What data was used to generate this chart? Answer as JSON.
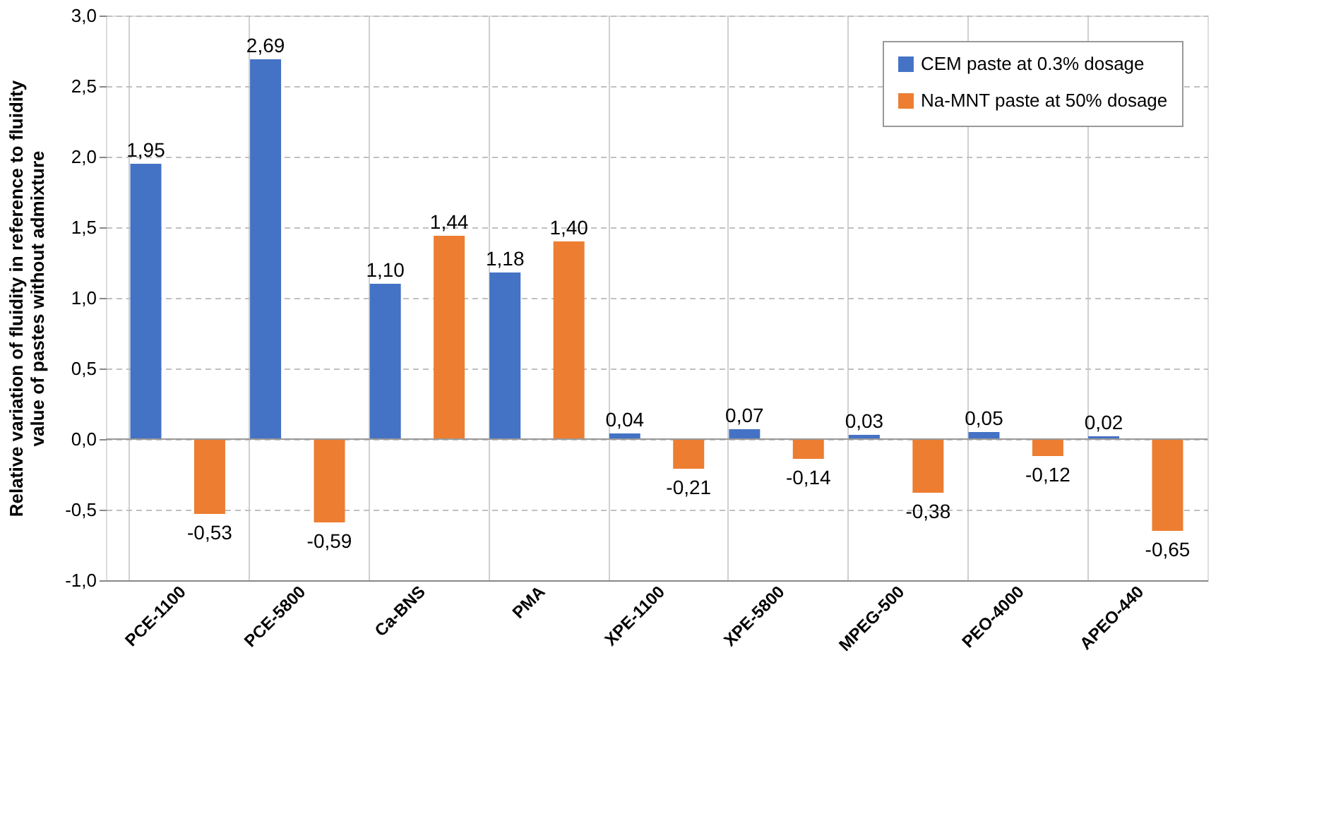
{
  "chart_data": {
    "type": "bar",
    "ylabel": "Relative variation of fluidity in reference to fluidity value of pastes without admixture",
    "categories": [
      "PCE-1100",
      "PCE-5800",
      "Ca-BNS",
      "PMA",
      "XPE-1100",
      "XPE-5800",
      "MPEG-500",
      "PEO-4000",
      "APEO-440"
    ],
    "series": [
      {
        "name": "CEM paste at 0.3% dosage",
        "color": "#4472c4",
        "values": [
          1.95,
          2.69,
          1.1,
          1.18,
          0.04,
          0.07,
          0.03,
          0.05,
          0.02
        ],
        "value_labels": [
          "1,95",
          "2,69",
          "1,10",
          "1,18",
          "0,04",
          "0,07",
          "0,03",
          "0,05",
          "0,02"
        ]
      },
      {
        "name": "Na-MNT paste at 50% dosage",
        "color": "#ed7d31",
        "values": [
          -0.53,
          -0.59,
          1.44,
          1.4,
          -0.21,
          -0.14,
          -0.38,
          -0.12,
          -0.65
        ],
        "value_labels": [
          "-0,53",
          "-0,59",
          "1,44",
          "1,40",
          "-0,21",
          "-0,14",
          "-0,38",
          "-0,12",
          "-0,65"
        ]
      }
    ],
    "ylim": [
      -1.0,
      3.0
    ],
    "yticks": [
      {
        "value": -1.0,
        "label": "-1,0"
      },
      {
        "value": -0.5,
        "label": "-0,5"
      },
      {
        "value": 0.0,
        "label": "0,0"
      },
      {
        "value": 0.5,
        "label": "0,5"
      },
      {
        "value": 1.0,
        "label": "1,0"
      },
      {
        "value": 1.5,
        "label": "1,5"
      },
      {
        "value": 2.0,
        "label": "2,0"
      },
      {
        "value": 2.5,
        "label": "2,5"
      },
      {
        "value": 3.0,
        "label": "3,0"
      }
    ],
    "grid": true,
    "legend": "top right"
  }
}
